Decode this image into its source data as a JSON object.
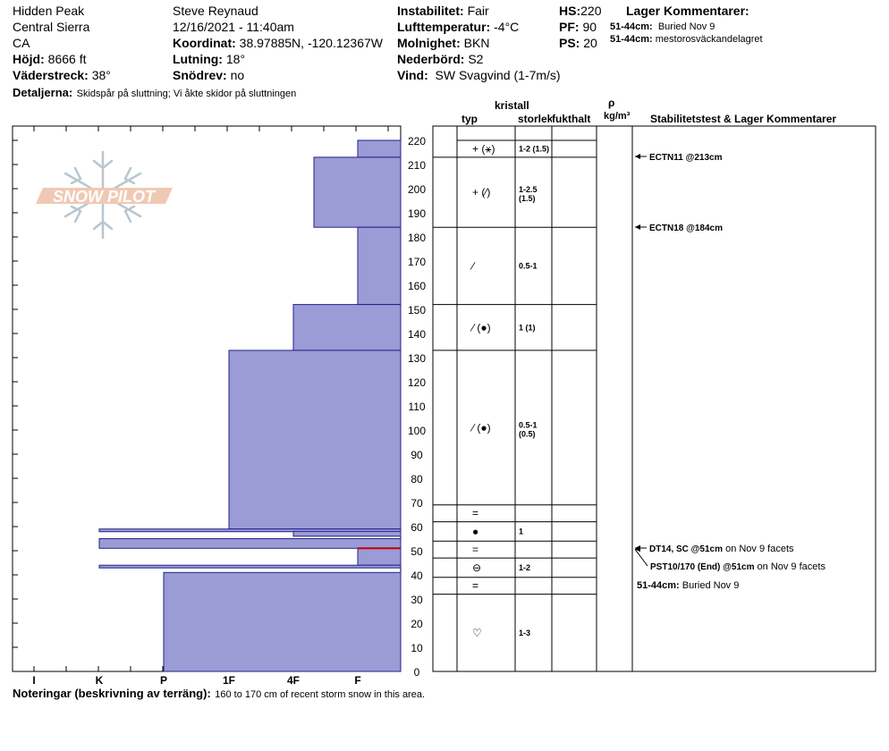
{
  "header": {
    "location": "Hidden Peak",
    "range": "Central Sierra",
    "state": "CA",
    "elev_label": "Höjd:",
    "elev_value": "8666 ft",
    "aspect_label": "Väderstreck:",
    "aspect_value": "38°",
    "details_label": "Detaljerna:",
    "details_value": "Skidspår på sluttning;  Vi åkte skidor på sluttningen",
    "observer": "Steve Reynaud",
    "datetime": "12/16/2021 - 11:40am",
    "coord_label": "Koordinat:",
    "coord_value": "38.97885N, -120.12367W",
    "slope_label": "Lutning:",
    "slope_value": "18°",
    "drift_label": "Snödrev:",
    "drift_value": "no",
    "stability_label": "Instabilitet:",
    "stability_value": "Fair",
    "airtemp_label": "Lufttemperatur:",
    "airtemp_value": "-4°C",
    "sky_label": "Molnighet:",
    "sky_value": "BKN",
    "precip_label": "Nederbörd:",
    "precip_value": "S2",
    "wind_label": "Vind:",
    "wind_value": "SW  Svagvind (1-7m/s)",
    "hs_label": "HS:",
    "hs_value": "220",
    "pf_label": "PF:",
    "pf_value": "90",
    "ps_label": "PS:",
    "ps_value": "20",
    "layer_comments_title": "Lager Kommentarer:",
    "layer_comments": [
      {
        "range": "51-44cm:",
        "text": "Buried Nov 9"
      },
      {
        "range": "51-44cm:",
        "text": "mestorosväckandelagret"
      }
    ]
  },
  "logo_text": "SNOW PILOT",
  "columns": {
    "type": "typ",
    "crystal": "kristall",
    "size": "storlek",
    "moisture": "fukthalt",
    "density_symbol": "ρ",
    "density_unit": "kg/m³",
    "tests_title": "Stabilitetstest & Lager Kommentarer"
  },
  "footer": {
    "label": "Noteringar (beskrivning av terräng):",
    "text": "160 to 170 cm of recent storm snow in this area."
  },
  "chart_data": {
    "type": "snow_profile",
    "y_axis": {
      "label": "",
      "unit": "cm",
      "range": [
        0,
        220
      ],
      "ticks": [
        0,
        10,
        20,
        30,
        40,
        50,
        60,
        70,
        80,
        90,
        100,
        110,
        120,
        130,
        140,
        150,
        160,
        170,
        180,
        190,
        200,
        210,
        220
      ]
    },
    "hardness_scale": [
      "I",
      "K",
      "P",
      "1F",
      "4F",
      "F"
    ],
    "hardness_layers": [
      {
        "top": 220,
        "bottom": 213,
        "hardness": "F"
      },
      {
        "top": 213,
        "bottom": 184,
        "hardness": "4F-"
      },
      {
        "top": 184,
        "bottom": 152,
        "hardness": "F"
      },
      {
        "top": 152,
        "bottom": 133,
        "hardness": "4F+"
      },
      {
        "top": 133,
        "bottom": 59,
        "hardness": "1F"
      },
      {
        "top": 59,
        "bottom": 58,
        "hardness": "K"
      },
      {
        "top": 58,
        "bottom": 56,
        "hardness": "4F"
      },
      {
        "top": 55,
        "bottom": 51,
        "hardness": "K"
      },
      {
        "top": 51,
        "bottom": 44,
        "hardness": "F"
      },
      {
        "top": 44,
        "bottom": 43,
        "hardness": "K"
      },
      {
        "top": 41,
        "bottom": 0,
        "hardness": "P"
      }
    ],
    "strat_layers": [
      {
        "top": 220,
        "bottom": 213,
        "type": "+ (⚹)",
        "size": "1-2 (1.5)"
      },
      {
        "top": 213,
        "bottom": 184,
        "type": "+ (∕)",
        "size": "1-2.5 (1.5)"
      },
      {
        "top": 184,
        "bottom": 152,
        "type": "∕",
        "size": "0.5-1"
      },
      {
        "top": 152,
        "bottom": 133,
        "type": "∕ (●)",
        "size": "1 (1)"
      },
      {
        "top": 133,
        "bottom": 69,
        "type": "∕ (●)",
        "size": "0.5-1 (0.5)"
      },
      {
        "top": 69,
        "bottom": 62,
        "type": "=",
        "size": ""
      },
      {
        "top": 62,
        "bottom": 54,
        "type": "●",
        "size": "1"
      },
      {
        "top": 54,
        "bottom": 47,
        "type": "=",
        "size": ""
      },
      {
        "top": 47,
        "bottom": 39,
        "type": "⊖",
        "size": "1-2"
      },
      {
        "top": 39,
        "bottom": 32,
        "type": "=",
        "size": ""
      },
      {
        "top": 32,
        "bottom": 0,
        "type": "♡",
        "size": "1-3"
      }
    ],
    "tests": [
      {
        "depth": 213,
        "label": "ECTN11 @213cm",
        "extra": ""
      },
      {
        "depth": 184,
        "label": "ECTN18 @184cm",
        "extra": ""
      },
      {
        "depth": 51,
        "label": "DT14, SC @51cm",
        "extra": " on Nov 9 facets"
      },
      {
        "depth": 51,
        "label": "PST10/170 (End) @51cm",
        "extra": " on Nov 9 facets"
      }
    ],
    "layer_note": {
      "range": "51-44cm:",
      "text": "Buried Nov 9"
    }
  }
}
